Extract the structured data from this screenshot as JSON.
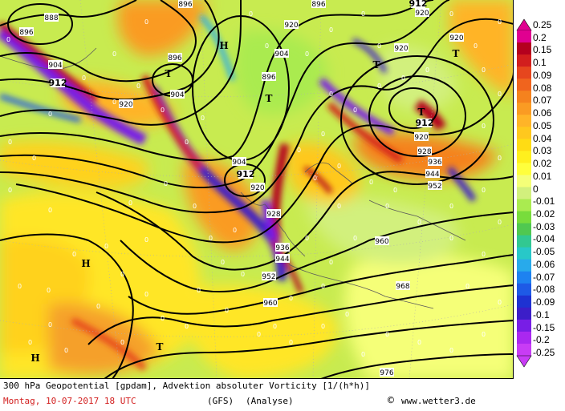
{
  "map": {
    "lows": [
      "T",
      "T",
      "T",
      "T",
      "T",
      "T"
    ],
    "highs": [
      "H",
      "H",
      "H"
    ],
    "contour_labels": [
      {
        "text": "888"
      },
      {
        "text": "896"
      },
      {
        "text": "904"
      },
      {
        "text": "912"
      },
      {
        "text": "920"
      },
      {
        "text": "896"
      },
      {
        "text": "904"
      },
      {
        "text": "896"
      },
      {
        "text": "904"
      },
      {
        "text": "920"
      },
      {
        "text": "920"
      },
      {
        "text": "920"
      },
      {
        "text": "912"
      },
      {
        "text": "920"
      },
      {
        "text": "928"
      },
      {
        "text": "936"
      },
      {
        "text": "944"
      },
      {
        "text": "952"
      },
      {
        "text": "904"
      },
      {
        "text": "912"
      },
      {
        "text": "920"
      },
      {
        "text": "928"
      },
      {
        "text": "936"
      },
      {
        "text": "944"
      },
      {
        "text": "952"
      },
      {
        "text": "960"
      },
      {
        "text": "960"
      },
      {
        "text": "968"
      },
      {
        "text": "976"
      },
      {
        "text": "896"
      },
      {
        "text": "896"
      },
      {
        "text": "912"
      },
      {
        "text": "920"
      }
    ],
    "zero_label": "0"
  },
  "scale": {
    "labels": [
      "0.25",
      "0.2",
      "0.15",
      "0.1",
      "0.09",
      "0.08",
      "0.07",
      "0.06",
      "0.05",
      "0.04",
      "0.03",
      "0.02",
      "0.01",
      "0",
      "-0.01",
      "-0.02",
      "-0.03",
      "-0.04",
      "-0.05",
      "-0.06",
      "-0.07",
      "-0.08",
      "-0.09",
      "-0.1",
      "-0.15",
      "-0.2",
      "-0.25"
    ],
    "colors": [
      "#e00090",
      "#b4001e",
      "#d21e1e",
      "#e6461e",
      "#f0641e",
      "#f5821e",
      "#fa9b23",
      "#ffb428",
      "#ffc81e",
      "#ffdc14",
      "#fff01e",
      "#ffff3c",
      "#f5ff78",
      "#d2f07d",
      "#aaeb50",
      "#78dc3c",
      "#50c850",
      "#32c891",
      "#28c8c8",
      "#28aaeb",
      "#1e82f0",
      "#1e5ae6",
      "#1e32d2",
      "#3c1ec8",
      "#781ee6",
      "#aa28f0",
      "#c83cf5"
    ]
  },
  "footer": {
    "line1": "300 hPa Geopotential [gpdam], Advektion absoluter Vorticity [1/(h*h)]",
    "date": "Montag, 10-07-2017  18 UTC",
    "model": "(GFS)",
    "analysis": "(Analyse)",
    "copyright_symbol": "©",
    "site": "www.wetter3.de"
  }
}
